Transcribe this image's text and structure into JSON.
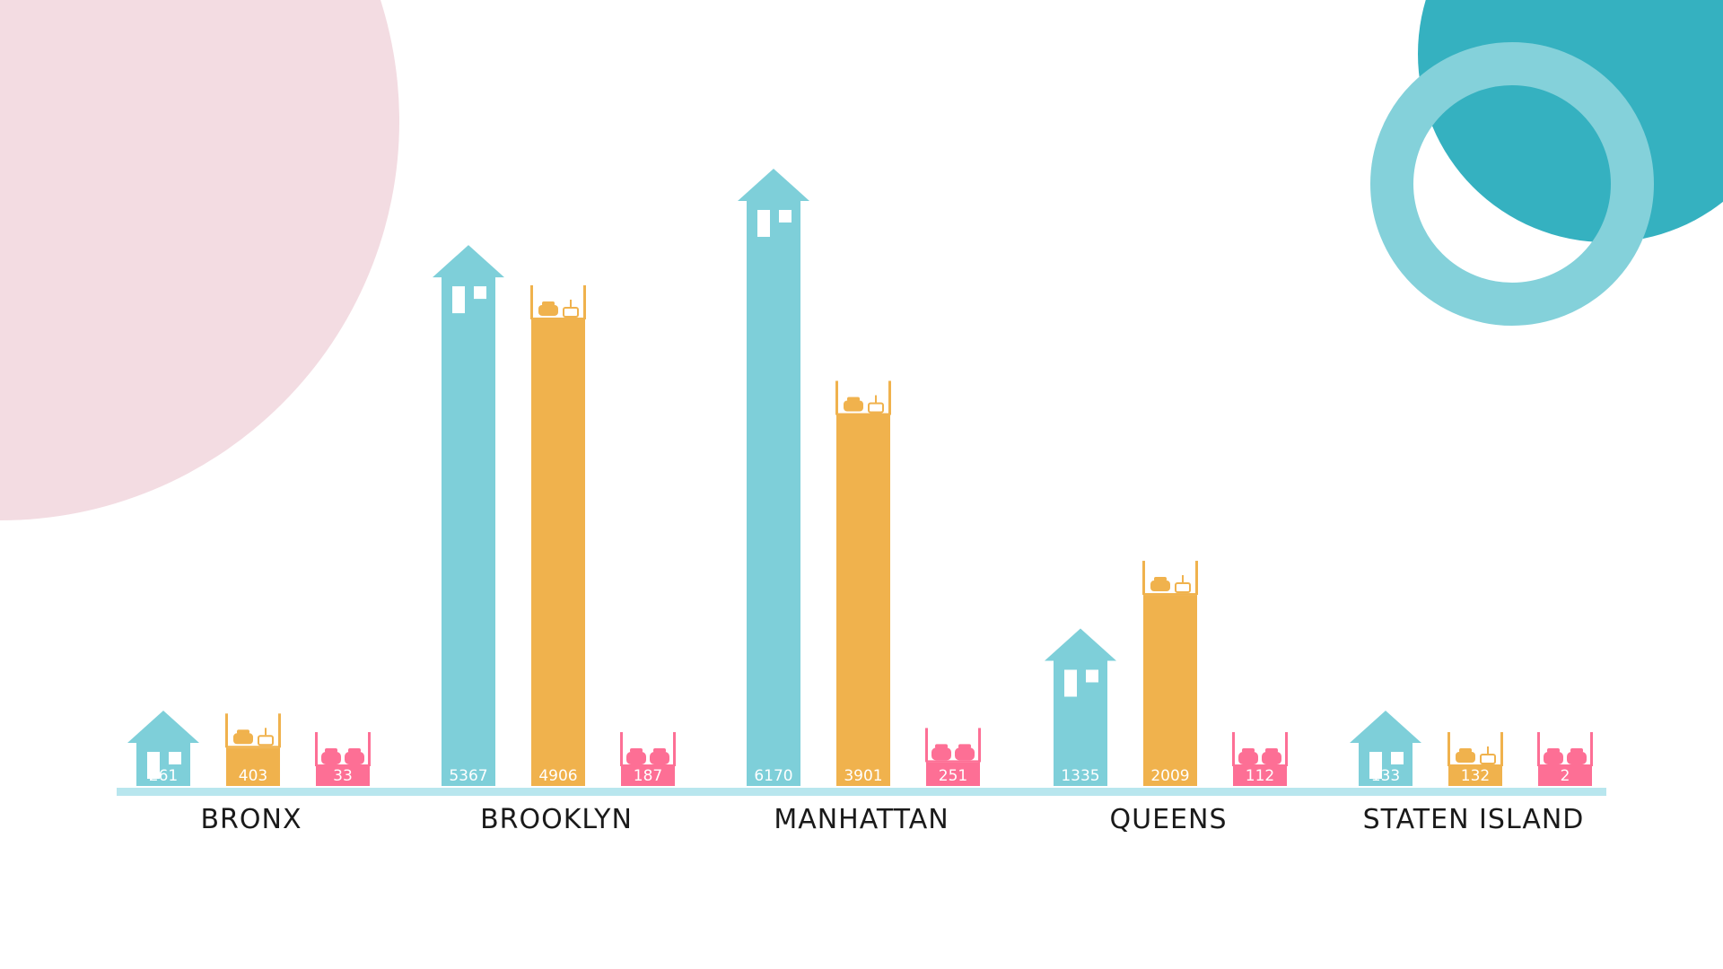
{
  "chart_data": {
    "type": "bar",
    "title": "",
    "xlabel": "",
    "ylabel": "",
    "ylim": [
      0,
      6500
    ],
    "grid": false,
    "legend": "none",
    "categories": [
      "BRONX",
      "BROOKLYN",
      "MANHATTAN",
      "QUEENS",
      "STATEN ISLAND"
    ],
    "series": [
      {
        "icon": "house-icon",
        "color": "#7ecfd9",
        "values": [
          261,
          5367,
          6170,
          1335,
          133
        ]
      },
      {
        "icon": "double-bed-icon",
        "color": "#f0b24d",
        "values": [
          403,
          4906,
          3901,
          2009,
          132
        ]
      },
      {
        "icon": "twin-bed-icon",
        "color": "#fd6f95",
        "values": [
          33,
          187,
          251,
          112,
          2
        ]
      }
    ]
  },
  "colors": {
    "baseline": "#b8e6ee",
    "pink_circle": "#f3dce2",
    "teal_circle": "#35b1c0",
    "teal_ring": "#84d1da"
  }
}
